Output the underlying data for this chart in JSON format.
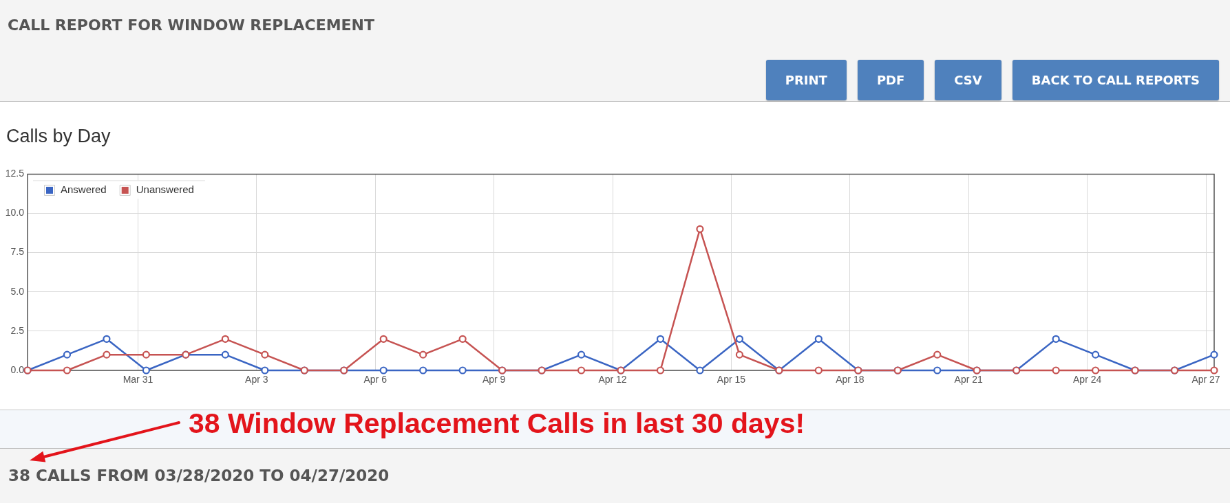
{
  "chart_data": {
    "type": "line",
    "title": "CALL REPORT FOR WINDOW REPLACEMENT",
    "subtitle": "Calls by Day",
    "x": [
      "2020-03-28T05:00",
      "2020-03-29T05:00",
      "2020-03-30T05:00",
      "2020-03-31T05:00",
      "2020-04-01T05:00",
      "2020-04-02T05:00",
      "2020-04-03T05:00",
      "2020-04-04T05:00",
      "2020-04-05T05:00",
      "2020-04-06T05:00",
      "2020-04-07T05:00",
      "2020-04-08T05:00",
      "2020-04-09T05:00",
      "2020-04-10T05:00",
      "2020-04-11T05:00",
      "2020-04-12T05:00",
      "2020-04-13T05:00",
      "2020-04-14T05:00",
      "2020-04-15T05:00",
      "2020-04-16T05:00",
      "2020-04-17T05:00",
      "2020-04-18T05:00",
      "2020-04-19T05:00",
      "2020-04-20T05:00",
      "2020-04-21T05:00",
      "2020-04-22T05:00",
      "2020-04-23T05:00",
      "2020-04-24T05:00",
      "2020-04-25T05:00",
      "2020-04-26T05:00",
      "2020-04-27T05:00"
    ],
    "series": [
      {
        "name": "Answered",
        "color": "#3a65c3",
        "values": [
          0,
          1,
          2,
          0,
          1,
          1,
          0,
          0,
          0,
          0,
          0,
          0,
          0,
          0,
          1,
          0,
          2,
          0,
          2,
          0,
          2,
          0,
          0,
          0,
          0,
          0,
          2,
          1,
          0,
          0,
          1
        ]
      },
      {
        "name": "Unanswered",
        "color": "#c65352",
        "values": [
          0,
          0,
          1,
          1,
          1,
          2,
          1,
          0,
          0,
          2,
          1,
          2,
          0,
          0,
          0,
          0,
          0,
          9,
          1,
          0,
          0,
          0,
          0,
          1,
          0,
          0,
          0,
          0,
          0,
          0,
          0
        ]
      }
    ],
    "xlim": [
      "2020-03-28T05:00",
      "2020-04-27T05:00"
    ],
    "xticks": [
      {
        "value": "2020-03-31",
        "label": "Mar 31"
      },
      {
        "value": "2020-04-03",
        "label": "Apr 3"
      },
      {
        "value": "2020-04-06",
        "label": "Apr 6"
      },
      {
        "value": "2020-04-09",
        "label": "Apr 9"
      },
      {
        "value": "2020-04-12",
        "label": "Apr 12"
      },
      {
        "value": "2020-04-15",
        "label": "Apr 15"
      },
      {
        "value": "2020-04-18",
        "label": "Apr 18"
      },
      {
        "value": "2020-04-21",
        "label": "Apr 21"
      },
      {
        "value": "2020-04-24",
        "label": "Apr 24"
      },
      {
        "value": "2020-04-27",
        "label": "Apr 27"
      }
    ],
    "ylim": [
      0,
      12.5
    ],
    "yticks": [
      {
        "value": 0,
        "label": "0.0"
      },
      2.5,
      {
        "value": 5,
        "label": "5.0"
      },
      7.5,
      {
        "value": 10,
        "label": "10.0"
      },
      12.5
    ],
    "grid": true,
    "legend": "top left",
    "marker": "circle",
    "line_style": "solid",
    "annotations": [
      "PRINT",
      "PDF",
      "CSV",
      "BACK TO CALL REPORTS",
      "38 Window Replacement Calls in last 30 days!",
      "38 CALLS FROM 03/28/2020 TO 04/27/2020"
    ]
  }
}
